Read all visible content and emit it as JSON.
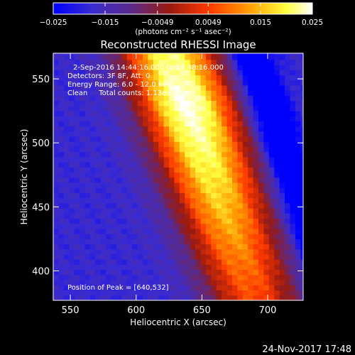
{
  "chart_data": {
    "type": "heatmap",
    "title": "Reconstructed RHESSI Image",
    "xlabel": "Heliocentric X (arcsec)",
    "ylabel": "Heliocentric Y (arcsec)",
    "xlim": [
      537,
      727
    ],
    "ylim": [
      377,
      570
    ],
    "x_ticks": [
      550,
      600,
      650,
      700
    ],
    "y_ticks": [
      400,
      450,
      500,
      550
    ],
    "colorbar": {
      "range": [
        -0.025,
        0.025
      ],
      "tick_values": [
        -0.025,
        -0.015,
        -0.0049,
        0.0049,
        0.015,
        0.025
      ],
      "tick_labels": [
        "−0.025",
        "−0.015",
        "−0.0049",
        "0.0049",
        "0.015",
        "0.025"
      ],
      "unit_label": "(photons cm⁻² s⁻¹ asec⁻²)",
      "colors": [
        "#0000ff",
        "#3a2bd0",
        "#5a2a8a",
        "#9a1a10",
        "#ff3a00",
        "#ff9a00",
        "#ffff40",
        "#ffffff"
      ]
    },
    "annotations": [
      "2-Sep-2016 14:44:16.000 to 14:48:16.000",
      "Detectors: 3F 8F, Att: 0",
      "Energy Range: 6.0 - 12.0 keV",
      "Clean     Total counts: 1.13e+05"
    ],
    "peak_label": "Position of Peak = [640,532]",
    "peak": [
      640,
      532
    ],
    "ridge": {
      "description_units": "arcsec",
      "center_at_y": [
        [
          377,
          690
        ],
        [
          570,
          625
        ]
      ],
      "half_width": 38,
      "peak_value": 0.025,
      "background_value": -0.018
    }
  },
  "footer": {
    "timestamp": "24-Nov-2017 17:48"
  }
}
